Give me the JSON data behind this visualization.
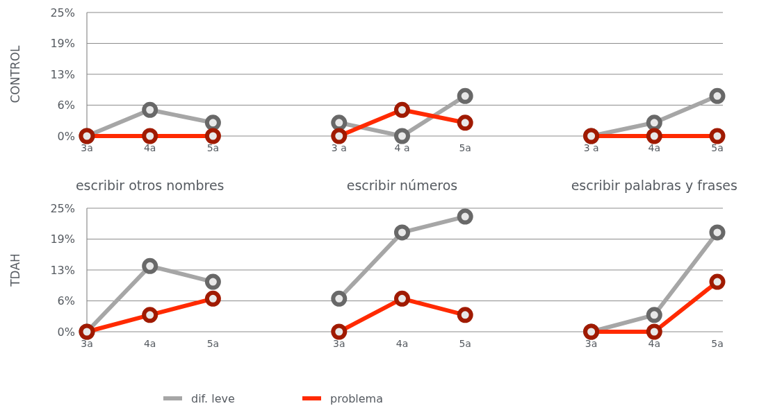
{
  "chart_data": [
    {
      "type": "line",
      "ylabel": "CONTROL",
      "categories": [
        "3a",
        "4a",
        "5a",
        null,
        "3 a",
        "4 a",
        "5a",
        null,
        "3 a",
        "4a",
        "5a"
      ],
      "series": [
        {
          "color": "#a6a6a6",
          "values": [
            0,
            5.3,
            2.7,
            null,
            2.7,
            0,
            8.1,
            null,
            0,
            2.7,
            8.1
          ]
        },
        {
          "color": "#ff2a00",
          "values": [
            0,
            0,
            0,
            null,
            0,
            5.3,
            2.7,
            null,
            0,
            0,
            0
          ]
        }
      ],
      "ylim": [
        0,
        25
      ],
      "yticks": [
        {
          "value": 0,
          "label": "0%"
        },
        {
          "value": 6.25,
          "label": "6%"
        },
        {
          "value": 12.5,
          "label": "13%"
        },
        {
          "value": 18.75,
          "label": "19%"
        },
        {
          "value": 25,
          "label": "25%"
        }
      ],
      "grid": "y",
      "marker": "circle",
      "line_style": "solid",
      "legend": false,
      "annotations": [
        "escribir otros nombres",
        "escribir números",
        "escribir palabras y frases"
      ]
    },
    {
      "type": "line",
      "ylabel": "TDAH",
      "categories": [
        "3a",
        "4a",
        "5a",
        null,
        "3a",
        "4a",
        "5a",
        null,
        "3a",
        "4a",
        "5a"
      ],
      "series": [
        {
          "name": "dif. leve",
          "color": "#a6a6a6",
          "values": [
            0,
            13.3,
            10.1,
            null,
            6.7,
            20.1,
            23.3,
            null,
            0,
            3.4,
            20.1
          ]
        },
        {
          "name": "problema",
          "color": "#ff2a00",
          "values": [
            0,
            3.4,
            6.7,
            null,
            0,
            6.7,
            3.4,
            null,
            0,
            0,
            10.1
          ]
        }
      ],
      "ylim": [
        0,
        25
      ],
      "yticks": [
        {
          "value": 0,
          "label": "0%"
        },
        {
          "value": 6.25,
          "label": "6%"
        },
        {
          "value": 12.5,
          "label": "13%"
        },
        {
          "value": 18.75,
          "label": "19%"
        },
        {
          "value": 25,
          "label": "25%"
        }
      ],
      "grid": "y",
      "marker": "circle",
      "line_style": "solid",
      "legend": "bottom"
    }
  ]
}
